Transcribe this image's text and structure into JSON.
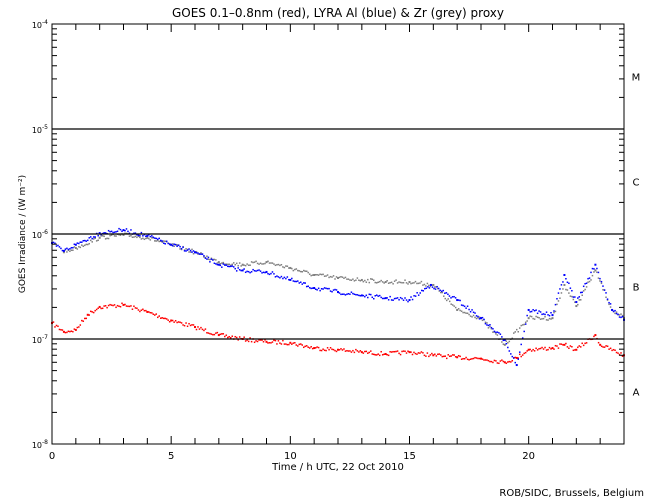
{
  "chart_data": {
    "type": "scatter",
    "title": "GOES 0.1–0.8nm (red), LYRA Al (blue) & Zr (grey) proxy",
    "xlabel": "Time / h UTC, 22 Oct 2010",
    "ylabel": "GOES Irradiance / (W m⁻²)",
    "xlim": [
      0,
      24
    ],
    "ylim": [
      1e-08,
      0.0001
    ],
    "yscale": "log",
    "x_ticks": [
      0,
      5,
      10,
      15,
      20
    ],
    "x_tick_labels": [
      "0",
      "5",
      "10",
      "15",
      "20"
    ],
    "y_ticks": [
      1e-08,
      1e-07,
      1e-06,
      1e-05,
      0.0001
    ],
    "y_tick_labels": [
      {
        "base": "10",
        "exp": "-8"
      },
      {
        "base": "10",
        "exp": "-7"
      },
      {
        "base": "10",
        "exp": "-6"
      },
      {
        "base": "10",
        "exp": "-5"
      },
      {
        "base": "10",
        "exp": "-4"
      }
    ],
    "reference_lines": [
      1e-07,
      1e-06,
      1e-05
    ],
    "flare_classes": [
      {
        "label": "A",
        "value": 3.16e-08
      },
      {
        "label": "B",
        "value": 3.16e-07
      },
      {
        "label": "C",
        "value": 3.16e-06
      },
      {
        "label": "M",
        "value": 3.16e-05
      }
    ],
    "series": [
      {
        "name": "GOES 0.1-0.8nm",
        "color": "#ff0000",
        "x": [
          0,
          0.5,
          1,
          1.5,
          2,
          3,
          4,
          5,
          6,
          7,
          8,
          9,
          10,
          11,
          12,
          13,
          14,
          15,
          16,
          17,
          18,
          19,
          19.5,
          20,
          21,
          21.5,
          22,
          22.8,
          23,
          24
        ],
        "values": [
          1.42e-07,
          1.17e-07,
          1.22e-07,
          1.7e-07,
          2.02e-07,
          2.11e-07,
          1.81e-07,
          1.5e-07,
          1.3e-07,
          1.09e-07,
          1e-07,
          9.4e-08,
          9.2e-08,
          8.2e-08,
          7.9e-08,
          7.5e-08,
          7.2e-08,
          7.5e-08,
          7e-08,
          6.7e-08,
          6.5e-08,
          6e-08,
          6.6e-08,
          7.9e-08,
          8.2e-08,
          8.8e-08,
          7.9e-08,
          1.09e-07,
          8.8e-08,
          7e-08
        ]
      },
      {
        "name": "LYRA Zr proxy",
        "color": "#808080",
        "x": [
          0.5,
          1,
          2,
          3,
          4,
          5,
          6,
          7,
          8,
          9,
          10,
          11,
          12,
          13,
          14,
          15,
          16,
          17,
          18,
          19,
          20,
          21,
          21.5,
          22,
          22.8,
          23.5,
          24
        ],
        "values": [
          6.7e-07,
          7.36e-07,
          9.2e-07,
          9.8e-07,
          9.2e-07,
          7.9e-07,
          6.7e-07,
          5.4e-07,
          5.1e-07,
          5.4e-07,
          4.75e-07,
          4.07e-07,
          3.81e-07,
          3.65e-07,
          3.49e-07,
          3.49e-07,
          3.27e-07,
          1.89e-07,
          1.58e-07,
          8.8e-08,
          1.58e-07,
          1.58e-07,
          3.27e-07,
          2.06e-07,
          4.5e-07,
          1.89e-07,
          1.58e-07
        ]
      },
      {
        "name": "LYRA Al proxy",
        "color": "#0000ff",
        "x": [
          0,
          0.5,
          1,
          2,
          3,
          4,
          5,
          6,
          7,
          8,
          9,
          10,
          11,
          12,
          13,
          14,
          15,
          15.9,
          17,
          18,
          19,
          19.5,
          20,
          21,
          21.5,
          22,
          22.8,
          23.5,
          24
        ],
        "values": [
          8.2e-07,
          6.9e-07,
          7.9e-07,
          1.02e-06,
          1.09e-06,
          9.6e-07,
          7.9e-07,
          6.7e-07,
          5.1e-07,
          4.5e-07,
          4.35e-07,
          3.65e-07,
          3.06e-07,
          2.8e-07,
          2.6e-07,
          2.45e-07,
          2.35e-07,
          3.27e-07,
          2.35e-07,
          1.58e-07,
          9.8e-08,
          5.65e-08,
          1.89e-07,
          1.69e-07,
          4.07e-07,
          2.25e-07,
          5.1e-07,
          1.89e-07,
          1.52e-07
        ]
      }
    ],
    "credit": "ROB/SIDC, Brussels, Belgium"
  }
}
